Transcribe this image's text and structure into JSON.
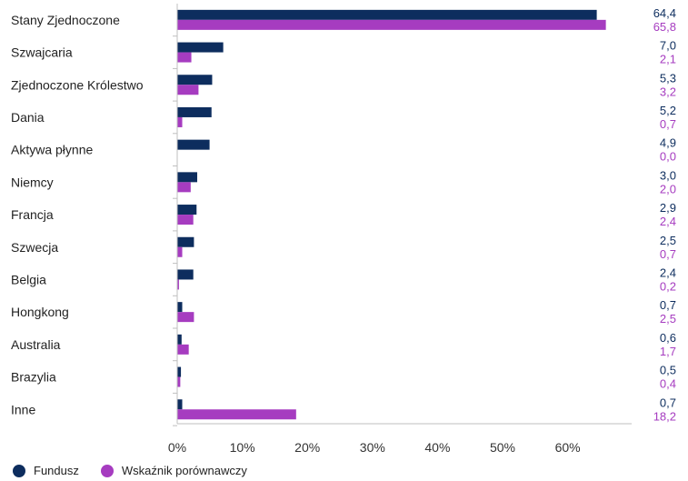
{
  "chart_data": {
    "type": "bar",
    "orientation": "horizontal",
    "categories": [
      "Stany Zjednoczone",
      "Szwajcaria",
      "Zjednoczone Królestwo",
      "Dania",
      "Aktywa płynne",
      "Niemcy",
      "Francja",
      "Szwecja",
      "Belgia",
      "Hongkong",
      "Australia",
      "Brazylia",
      "Inne"
    ],
    "series": [
      {
        "name": "Fundusz",
        "color": "#0d2d5e",
        "values": [
          64.4,
          7.0,
          5.3,
          5.2,
          4.9,
          3.0,
          2.9,
          2.5,
          2.4,
          0.7,
          0.6,
          0.5,
          0.7
        ],
        "labels": [
          "64,4",
          "7,0",
          "5,3",
          "5,2",
          "4,9",
          "3,0",
          "2,9",
          "2,5",
          "2,4",
          "0,7",
          "0,6",
          "0,5",
          "0,7"
        ]
      },
      {
        "name": "Wskaźnik porównawczy",
        "color": "#a63cc0",
        "values": [
          65.8,
          2.1,
          3.2,
          0.7,
          0.0,
          2.0,
          2.4,
          0.7,
          0.2,
          2.5,
          1.7,
          0.4,
          18.2
        ],
        "labels": [
          "65,8",
          "2,1",
          "3,2",
          "0,7",
          "0,0",
          "2,0",
          "2,4",
          "0,7",
          "0,2",
          "2,5",
          "1,7",
          "0,4",
          "18,2"
        ]
      }
    ],
    "x_ticks": [
      "0%",
      "10%",
      "20%",
      "30%",
      "40%",
      "50%",
      "60%"
    ],
    "xlim": [
      0,
      70
    ],
    "title": "",
    "xlabel": "",
    "ylabel": "",
    "grid": false,
    "legend_position": "bottom-left"
  }
}
